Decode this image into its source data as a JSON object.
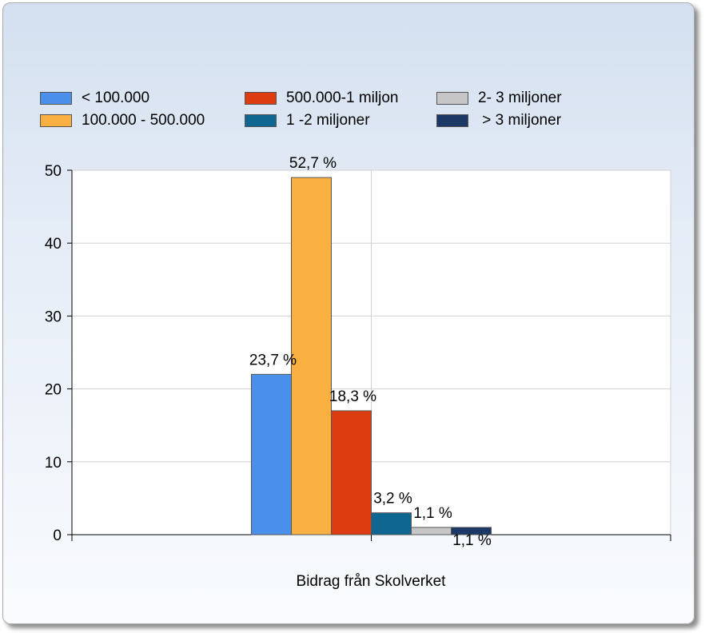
{
  "chart_data": {
    "type": "bar",
    "title": "",
    "xlabel": "Bidrag från Skolverket",
    "ylabel": "",
    "ylim": [
      0,
      50
    ],
    "yticks": [
      0,
      10,
      20,
      30,
      40,
      50
    ],
    "grid": true,
    "legend_position": "top",
    "series": [
      {
        "name": "< 100.000",
        "value": 22,
        "label": "23,7 %",
        "color": "#4a90ea"
      },
      {
        "name": "100.000 - 500.000",
        "value": 49,
        "label": "52,7 %",
        "color": "#f9b040"
      },
      {
        "name": "500.000-1 miljon",
        "value": 17,
        "label": "18,3 %",
        "color": "#dc3c0f"
      },
      {
        "name": "1 -2 miljoner",
        "value": 3,
        "label": "3,2 %",
        "color": "#0f6690"
      },
      {
        "name": "2- 3 miljoner",
        "value": 1,
        "label": "1,1 %",
        "color": "#c6c6c6"
      },
      {
        "name": " > 3 miljoner",
        "value": 1,
        "label": "1,1 %",
        "color": "#1c3867"
      }
    ]
  }
}
